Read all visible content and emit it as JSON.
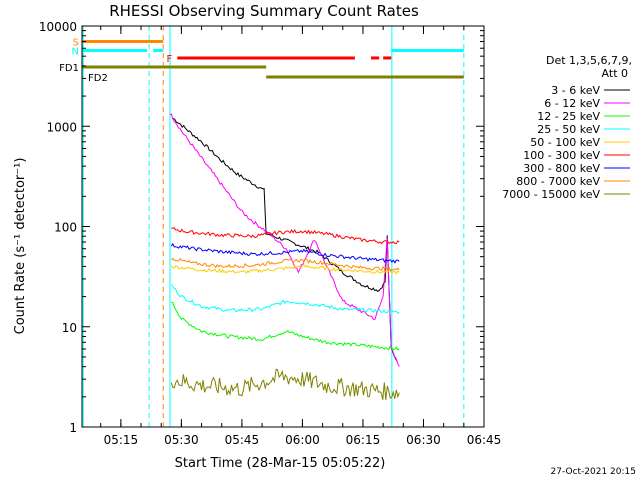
{
  "chart_data": {
    "type": "line",
    "title": "RHESSI Observing Summary Count Rates",
    "xlabel": "Start Time (28-Mar-15 05:05:22)",
    "ylabel": "Count Rate (s⁻¹ detector⁻¹)",
    "y_scale": "log",
    "ylim": [
      1,
      10000
    ],
    "xlim": [
      "05:05:22",
      "06:45:00"
    ],
    "x_tick_labels": [
      "05:15",
      "05:30",
      "05:45",
      "06:00",
      "06:15",
      "06:30",
      "06:45"
    ],
    "y_tick_labels": [
      "1",
      "10",
      "100",
      "1000",
      "10000"
    ],
    "legend": {
      "placement": "right",
      "header_line1": "Det 1,3,5,6,7,9,",
      "header_line2": "Att 0"
    },
    "series": [
      {
        "name": "3 - 6 keV",
        "color": "#000000",
        "points": [
          [
            "05:28:00",
            1200
          ],
          [
            "05:35:00",
            700
          ],
          [
            "05:40:00",
            450
          ],
          [
            "05:44:00",
            330
          ],
          [
            "05:49:00",
            250
          ],
          [
            "05:50:30",
            230
          ],
          [
            "05:51:00",
            85
          ],
          [
            "05:58:00",
            68
          ],
          [
            "06:04:00",
            55
          ],
          [
            "06:10:00",
            35
          ],
          [
            "06:15:00",
            26
          ],
          [
            "06:19:00",
            23
          ],
          [
            "06:20:30",
            28
          ],
          [
            "06:21:00",
            80
          ],
          [
            "06:22:00",
            6
          ],
          [
            "06:23:30",
            4.5
          ]
        ]
      },
      {
        "name": "6 - 12 keV",
        "color": "#ff00ff",
        "points": [
          [
            "05:27:10",
            1350
          ],
          [
            "05:30:00",
            900
          ],
          [
            "05:35:00",
            480
          ],
          [
            "05:40:00",
            260
          ],
          [
            "05:45:00",
            140
          ],
          [
            "05:48:00",
            110
          ],
          [
            "05:51:00",
            90
          ],
          [
            "05:56:00",
            60
          ],
          [
            "05:59:00",
            35
          ],
          [
            "06:03:00",
            75
          ],
          [
            "06:06:00",
            40
          ],
          [
            "06:10:00",
            18
          ],
          [
            "06:15:00",
            14
          ],
          [
            "06:18:00",
            12
          ],
          [
            "06:20:00",
            20
          ],
          [
            "06:21:00",
            80
          ],
          [
            "06:22:00",
            6
          ],
          [
            "06:24:00",
            4
          ]
        ]
      },
      {
        "name": "12 - 25 keV",
        "color": "#00ff00",
        "points": [
          [
            "05:27:30",
            18
          ],
          [
            "05:30:00",
            12
          ],
          [
            "05:35:00",
            9
          ],
          [
            "05:42:00",
            8
          ],
          [
            "05:50:00",
            7.5
          ],
          [
            "05:56:00",
            9
          ],
          [
            "06:00:00",
            8
          ],
          [
            "06:06:00",
            7
          ],
          [
            "06:15:00",
            6.5
          ],
          [
            "06:24:00",
            6
          ]
        ]
      },
      {
        "name": "25 - 50 keV",
        "color": "#00ffff",
        "points": [
          [
            "05:27:30",
            26
          ],
          [
            "05:30:00",
            20
          ],
          [
            "05:35:00",
            16
          ],
          [
            "05:42:00",
            14.5
          ],
          [
            "05:50:00",
            15
          ],
          [
            "05:56:00",
            18
          ],
          [
            "06:02:00",
            17
          ],
          [
            "06:10:00",
            15
          ],
          [
            "06:18:00",
            14.5
          ],
          [
            "06:24:00",
            14
          ]
        ]
      },
      {
        "name": "50 - 100 keV",
        "color": "#ffcc00",
        "points": [
          [
            "05:27:30",
            40
          ],
          [
            "05:35:00",
            37
          ],
          [
            "05:45:00",
            35
          ],
          [
            "05:55:00",
            38
          ],
          [
            "06:00:00",
            40
          ],
          [
            "06:10:00",
            37
          ],
          [
            "06:20:00",
            35
          ],
          [
            "06:24:00",
            35
          ]
        ]
      },
      {
        "name": "100 - 300 keV",
        "color": "#ff0000",
        "points": [
          [
            "05:27:30",
            95
          ],
          [
            "05:32:00",
            88
          ],
          [
            "05:40:00",
            82
          ],
          [
            "05:48:00",
            80
          ],
          [
            "05:55:00",
            88
          ],
          [
            "06:00:00",
            90
          ],
          [
            "06:06:00",
            84
          ],
          [
            "06:14:00",
            74
          ],
          [
            "06:20:00",
            70
          ],
          [
            "06:24:00",
            70
          ]
        ]
      },
      {
        "name": "300 - 800 keV",
        "color": "#0000ff",
        "points": [
          [
            "05:27:30",
            65
          ],
          [
            "05:33:00",
            60
          ],
          [
            "05:40:00",
            56
          ],
          [
            "05:48:00",
            53
          ],
          [
            "05:55:00",
            55
          ],
          [
            "06:00:00",
            57
          ],
          [
            "06:06:00",
            52
          ],
          [
            "06:14:00",
            48
          ],
          [
            "06:20:00",
            46
          ],
          [
            "06:24:00",
            45
          ]
        ]
      },
      {
        "name": "800 - 7000 keV",
        "color": "#ff8800",
        "points": [
          [
            "05:27:30",
            48
          ],
          [
            "05:33:00",
            43
          ],
          [
            "05:40:00",
            40
          ],
          [
            "05:48:00",
            41
          ],
          [
            "05:55:00",
            45
          ],
          [
            "06:00:00",
            46
          ],
          [
            "06:06:00",
            43
          ],
          [
            "06:14:00",
            39
          ],
          [
            "06:20:00",
            38
          ],
          [
            "06:24:00",
            37
          ]
        ]
      },
      {
        "name": "7000 - 15000 keV",
        "color": "#808000",
        "points": [
          [
            "05:27:30",
            3
          ],
          [
            "05:35:00",
            2.6
          ],
          [
            "05:45:00",
            2.4
          ],
          [
            "05:50:00",
            2.8
          ],
          [
            "05:55:00",
            3.2
          ],
          [
            "06:00:00",
            3
          ],
          [
            "06:06:00",
            2.6
          ],
          [
            "06:14:00",
            2.4
          ],
          [
            "06:24:00",
            2.2
          ]
        ]
      }
    ],
    "flags": [
      {
        "label": "S",
        "color": "#ff8800",
        "level": 7000,
        "segments": [
          [
            "05:05:22",
            "05:25:30"
          ]
        ]
      },
      {
        "label": "N",
        "color": "#00ffff",
        "level": 5700,
        "segments": [
          [
            "05:05:22",
            "05:21:30"
          ],
          [
            "05:23:00",
            "05:25:30"
          ],
          [
            "06:22:00",
            "06:40:00"
          ]
        ]
      },
      {
        "label": "F",
        "color": "#ff0000",
        "level": 4800,
        "segments": [
          [
            "05:29:00",
            "06:13:00"
          ],
          [
            "06:17:00",
            "06:19:00"
          ],
          [
            "06:20:00",
            "06:22:00"
          ]
        ]
      },
      {
        "label": "FD1",
        "color": "#808000",
        "level": 3900,
        "segments": [
          [
            "05:05:22",
            "05:51:00"
          ]
        ]
      },
      {
        "label": "FD2",
        "color": "#808000",
        "level": 3100,
        "segments": [
          [
            "05:51:00",
            "06:40:00"
          ]
        ]
      }
    ],
    "vertical_markers": [
      {
        "time": "05:05:40",
        "color": "#00ffff",
        "style": "solid"
      },
      {
        "time": "05:22:00",
        "color": "#00ffff",
        "style": "dashed"
      },
      {
        "time": "05:25:30",
        "color": "#ff8800",
        "style": "dashed"
      },
      {
        "time": "05:27:10",
        "color": "#00ffff",
        "style": "solid"
      },
      {
        "time": "06:22:10",
        "color": "#00ffff",
        "style": "solid"
      },
      {
        "time": "06:40:00",
        "color": "#00ffff",
        "style": "dashed"
      }
    ],
    "footer_timestamp": "27-Oct-2021 20:15"
  }
}
